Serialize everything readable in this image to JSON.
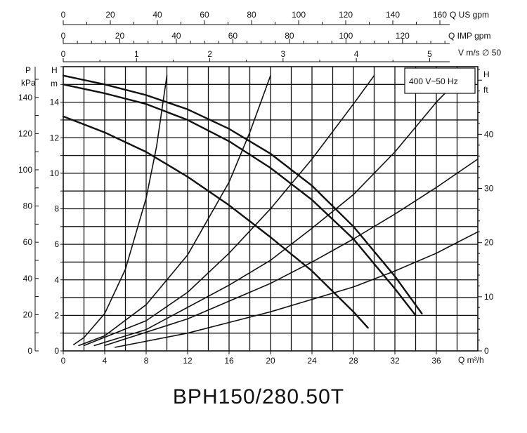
{
  "chart_data": {
    "type": "line",
    "title": "BPH150/280.50T",
    "legend_box": "400 V~50 Hz",
    "x_axis": {
      "label": "Q m³/h",
      "ticks": [
        0,
        4,
        8,
        12,
        16,
        20,
        24,
        28,
        32,
        36
      ],
      "range": [
        0,
        40
      ]
    },
    "y_axis_head_m": {
      "label": "H",
      "unit": "m",
      "ticks": [
        0,
        2,
        4,
        6,
        8,
        10,
        12,
        14
      ],
      "range": [
        0,
        16
      ]
    },
    "y_axis_pressure_kpa": {
      "label": "P",
      "unit": "kPa",
      "ticks": [
        0,
        20,
        40,
        60,
        80,
        100,
        120,
        140
      ]
    },
    "y_axis_head_ft": {
      "label": "H",
      "unit": "ft",
      "ticks": [
        0,
        10,
        20,
        30,
        40
      ]
    },
    "top_axis_us_gpm": {
      "label": "Q US gpm",
      "ticks": [
        0,
        20,
        40,
        60,
        80,
        100,
        120,
        140,
        160
      ]
    },
    "top_axis_imp_gpm": {
      "label": "Q IMP gpm",
      "ticks": [
        0,
        20,
        40,
        60,
        80,
        100,
        120
      ]
    },
    "top_axis_velocity": {
      "label": "V m/s ∅ 50",
      "ticks": [
        0,
        1,
        2,
        3,
        4,
        5
      ]
    },
    "grid": true,
    "pump_curves": [
      {
        "points": [
          [
            0,
            13.2
          ],
          [
            4,
            12.3
          ],
          [
            8,
            11.2
          ],
          [
            12,
            9.8
          ],
          [
            16,
            8.2
          ],
          [
            20,
            6.4
          ],
          [
            24,
            4.5
          ],
          [
            28,
            2.2
          ],
          [
            29.4,
            1.3
          ]
        ]
      },
      {
        "points": [
          [
            0,
            15.0
          ],
          [
            4,
            14.5
          ],
          [
            8,
            13.9
          ],
          [
            12,
            13.0
          ],
          [
            16,
            11.8
          ],
          [
            20,
            10.3
          ],
          [
            24,
            8.5
          ],
          [
            28,
            6.3
          ],
          [
            32,
            3.5
          ],
          [
            34,
            2.0
          ]
        ]
      },
      {
        "points": [
          [
            0,
            15.5
          ],
          [
            4,
            15.0
          ],
          [
            8,
            14.4
          ],
          [
            12,
            13.6
          ],
          [
            16,
            12.5
          ],
          [
            20,
            11.1
          ],
          [
            24,
            9.3
          ],
          [
            28,
            7.0
          ],
          [
            32,
            4.2
          ],
          [
            34.6,
            2.1
          ]
        ]
      }
    ],
    "system_curves": [
      {
        "points": [
          [
            1,
            0.35
          ],
          [
            2,
            0.75
          ],
          [
            4,
            2.1
          ],
          [
            6,
            4.6
          ],
          [
            8,
            8.6
          ],
          [
            9,
            11.5
          ],
          [
            10,
            15.5
          ]
        ]
      },
      {
        "points": [
          [
            1.5,
            0.3
          ],
          [
            4,
            0.85
          ],
          [
            8,
            2.6
          ],
          [
            12,
            5.4
          ],
          [
            16,
            9.5
          ],
          [
            18,
            12.3
          ],
          [
            20,
            15.5
          ]
        ]
      },
      {
        "points": [
          [
            2,
            0.3
          ],
          [
            8,
            1.7
          ],
          [
            12,
            3.3
          ],
          [
            16,
            5.5
          ],
          [
            20,
            8.0
          ],
          [
            24,
            10.8
          ],
          [
            28,
            13.9
          ],
          [
            30,
            15.5
          ]
        ]
      },
      {
        "points": [
          [
            3,
            0.3
          ],
          [
            8,
            1.2
          ],
          [
            16,
            3.7
          ],
          [
            20,
            5.1
          ],
          [
            24,
            6.9
          ],
          [
            28,
            8.8
          ],
          [
            32,
            11.2
          ],
          [
            36,
            14.0
          ],
          [
            38.5,
            15.5
          ]
        ]
      },
      {
        "points": [
          [
            4,
            0.3
          ],
          [
            12,
            1.8
          ],
          [
            16,
            2.8
          ],
          [
            20,
            3.8
          ],
          [
            24,
            5.0
          ],
          [
            28,
            6.3
          ],
          [
            32,
            7.7
          ],
          [
            36,
            9.2
          ],
          [
            40,
            10.8
          ]
        ]
      },
      {
        "points": [
          [
            5,
            0.2
          ],
          [
            12,
            1.0
          ],
          [
            16,
            1.6
          ],
          [
            20,
            2.2
          ],
          [
            24,
            2.9
          ],
          [
            28,
            3.6
          ],
          [
            32,
            4.5
          ],
          [
            36,
            5.5
          ],
          [
            40,
            6.7
          ]
        ]
      }
    ]
  }
}
